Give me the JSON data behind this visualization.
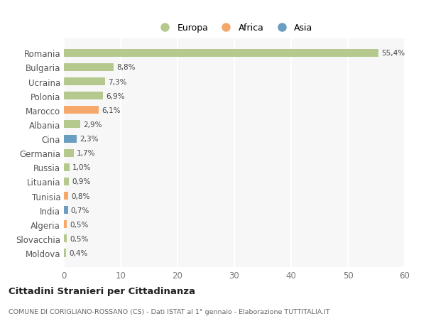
{
  "countries": [
    "Romania",
    "Bulgaria",
    "Ucraina",
    "Polonia",
    "Marocco",
    "Albania",
    "Cina",
    "Germania",
    "Russia",
    "Lituania",
    "Tunisia",
    "India",
    "Algeria",
    "Slovacchia",
    "Moldova"
  ],
  "values": [
    55.4,
    8.8,
    7.3,
    6.9,
    6.1,
    2.9,
    2.3,
    1.7,
    1.0,
    0.9,
    0.8,
    0.7,
    0.5,
    0.5,
    0.4
  ],
  "labels": [
    "55,4%",
    "8,8%",
    "7,3%",
    "6,9%",
    "6,1%",
    "2,9%",
    "2,3%",
    "1,7%",
    "1,0%",
    "0,9%",
    "0,8%",
    "0,7%",
    "0,5%",
    "0,5%",
    "0,4%"
  ],
  "continents": [
    "Europa",
    "Europa",
    "Europa",
    "Europa",
    "Africa",
    "Europa",
    "Asia",
    "Europa",
    "Europa",
    "Europa",
    "Africa",
    "Asia",
    "Africa",
    "Europa",
    "Europa"
  ],
  "continent_colors": {
    "Europa": "#b5c98e",
    "Africa": "#f4a96a",
    "Asia": "#6a9ec0"
  },
  "background_color": "#ffffff",
  "plot_bg_color": "#f7f7f7",
  "grid_color": "#ffffff",
  "bar_height": 0.55,
  "bar_alpha": 1.0,
  "title_main": "Cittadini Stranieri per Cittadinanza",
  "title_sub": "COMUNE DI CORIGLIANO-ROSSANO (CS) - Dati ISTAT al 1° gennaio - Elaborazione TUTTITALIA.IT",
  "xlim": [
    0,
    60
  ],
  "xticks": [
    0,
    10,
    20,
    30,
    40,
    50,
    60
  ],
  "figsize": [
    6.0,
    4.6
  ],
  "dpi": 100,
  "legend_order": [
    "Europa",
    "Africa",
    "Asia"
  ]
}
